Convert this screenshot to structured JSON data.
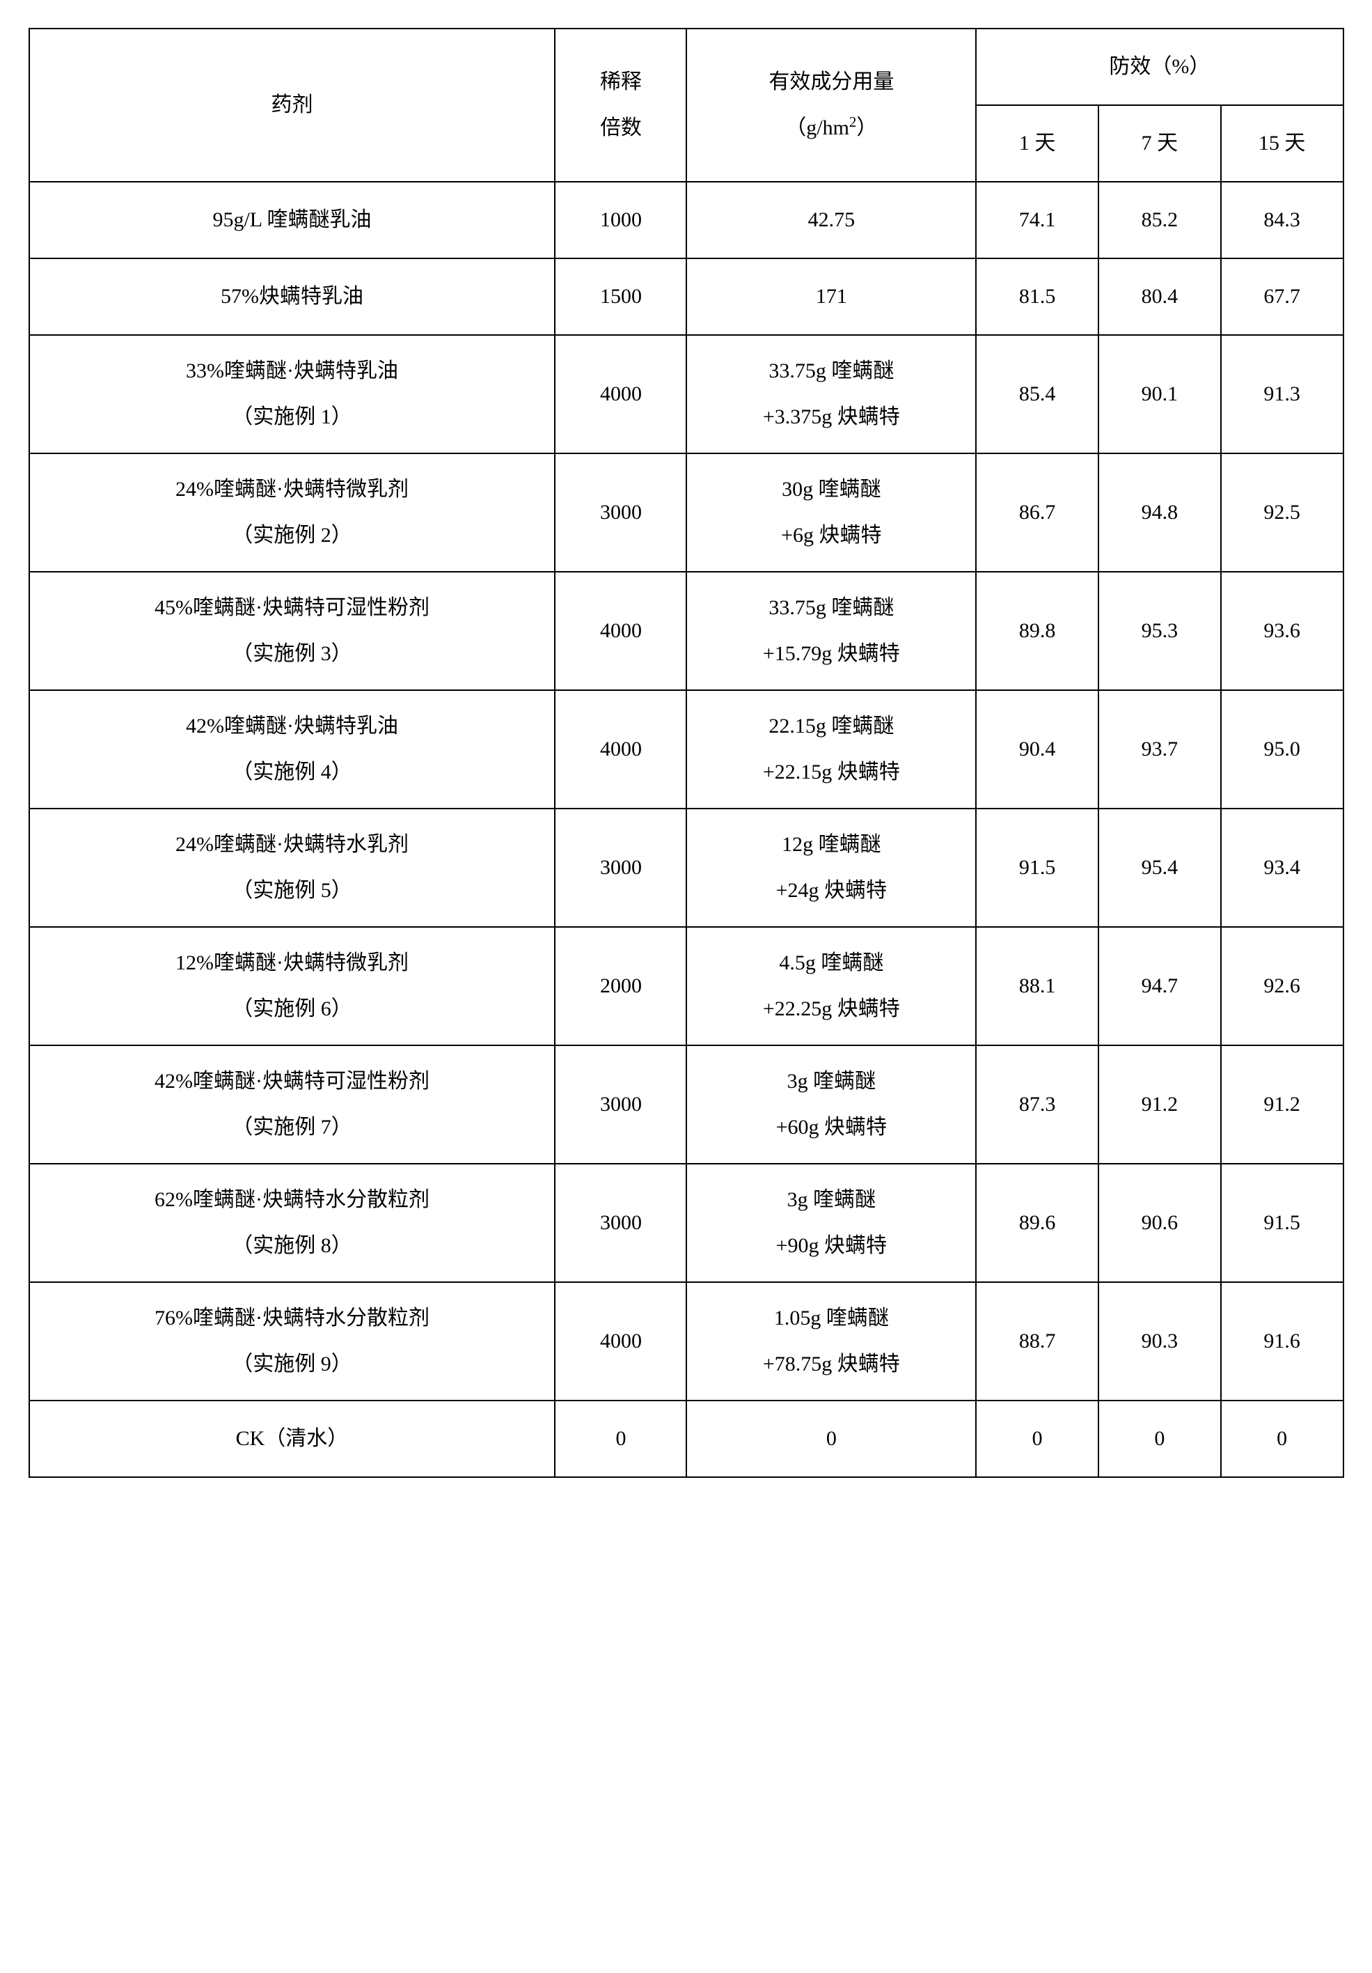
{
  "table": {
    "border_color": "#000000",
    "background_color": "#ffffff",
    "text_color": "#000000",
    "font_size_pt": 30,
    "line_height": 2.4,
    "header": {
      "agent": "药剂",
      "dilution": "稀释\n倍数",
      "dosage": "有效成分用量\n（g/hm²）",
      "efficacy_group": "防效（%）",
      "efficacy_sub": [
        "1 天",
        "7 天",
        "15 天"
      ]
    },
    "rows": [
      {
        "agent": "95g/L 喹螨醚乳油",
        "dilution": "1000",
        "dosage": "42.75",
        "e1": "74.1",
        "e7": "85.2",
        "e15": "84.3"
      },
      {
        "agent": "57%炔螨特乳油",
        "dilution": "1500",
        "dosage": "171",
        "e1": "81.5",
        "e7": "80.4",
        "e15": "67.7"
      },
      {
        "agent": "33%喹螨醚·炔螨特乳油\n（实施例 1）",
        "dilution": "4000",
        "dosage": "33.75g 喹螨醚\n+3.375g 炔螨特",
        "e1": "85.4",
        "e7": "90.1",
        "e15": "91.3"
      },
      {
        "agent": "24%喹螨醚·炔螨特微乳剂\n（实施例 2）",
        "dilution": "3000",
        "dosage": "30g 喹螨醚\n+6g 炔螨特",
        "e1": "86.7",
        "e7": "94.8",
        "e15": "92.5"
      },
      {
        "agent": "45%喹螨醚·炔螨特可湿性粉剂\n（实施例 3）",
        "dilution": "4000",
        "dosage": "33.75g 喹螨醚\n+15.79g 炔螨特",
        "e1": "89.8",
        "e7": "95.3",
        "e15": "93.6"
      },
      {
        "agent": "42%喹螨醚·炔螨特乳油\n（实施例 4）",
        "dilution": "4000",
        "dosage": "22.15g 喹螨醚\n+22.15g 炔螨特",
        "e1": "90.4",
        "e7": "93.7",
        "e15": "95.0"
      },
      {
        "agent": "24%喹螨醚·炔螨特水乳剂\n（实施例 5）",
        "dilution": "3000",
        "dosage": "12g 喹螨醚\n+24g 炔螨特",
        "e1": "91.5",
        "e7": "95.4",
        "e15": "93.4"
      },
      {
        "agent": "12%喹螨醚·炔螨特微乳剂\n（实施例 6）",
        "dilution": "2000",
        "dosage": "4.5g 喹螨醚\n+22.25g 炔螨特",
        "e1": "88.1",
        "e7": "94.7",
        "e15": "92.6"
      },
      {
        "agent": "42%喹螨醚·炔螨特可湿性粉剂\n（实施例 7）",
        "dilution": "3000",
        "dosage": "3g 喹螨醚\n+60g 炔螨特",
        "e1": "87.3",
        "e7": "91.2",
        "e15": "91.2"
      },
      {
        "agent": "62%喹螨醚·炔螨特水分散粒剂\n（实施例 8）",
        "dilution": "3000",
        "dosage": "3g 喹螨醚\n+90g 炔螨特",
        "e1": "89.6",
        "e7": "90.6",
        "e15": "91.5"
      },
      {
        "agent": "76%喹螨醚·炔螨特水分散粒剂\n（实施例 9）",
        "dilution": "4000",
        "dosage": "1.05g 喹螨醚\n+78.75g 炔螨特",
        "e1": "88.7",
        "e7": "90.3",
        "e15": "91.6"
      },
      {
        "agent": "CK（清水）",
        "dilution": "0",
        "dosage": "0",
        "e1": "0",
        "e7": "0",
        "e15": "0"
      }
    ],
    "column_widths_pct": [
      40,
      10,
      22,
      9.33,
      9.33,
      9.33
    ]
  }
}
